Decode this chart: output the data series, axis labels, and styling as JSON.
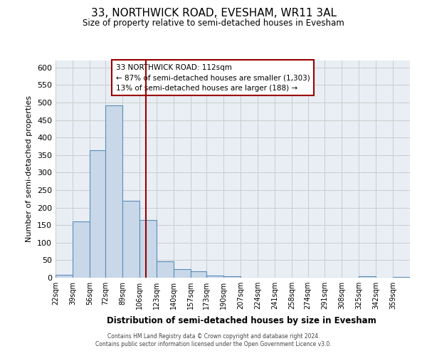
{
  "title": "33, NORTHWICK ROAD, EVESHAM, WR11 3AL",
  "subtitle": "Size of property relative to semi-detached houses in Evesham",
  "xlabel": "Distribution of semi-detached houses by size in Evesham",
  "ylabel": "Number of semi-detached properties",
  "bin_labels": [
    "22sqm",
    "39sqm",
    "56sqm",
    "72sqm",
    "89sqm",
    "106sqm",
    "123sqm",
    "140sqm",
    "157sqm",
    "173sqm",
    "190sqm",
    "207sqm",
    "224sqm",
    "241sqm",
    "258sqm",
    "274sqm",
    "291sqm",
    "308sqm",
    "325sqm",
    "342sqm",
    "359sqm"
  ],
  "bin_edges": [
    22,
    39,
    56,
    72,
    89,
    106,
    123,
    140,
    157,
    173,
    190,
    207,
    224,
    241,
    258,
    274,
    291,
    308,
    325,
    342,
    359,
    376
  ],
  "bar_heights": [
    8,
    160,
    363,
    491,
    220,
    165,
    47,
    24,
    19,
    6,
    5,
    1,
    0,
    0,
    0,
    0,
    0,
    0,
    4,
    0,
    2
  ],
  "bar_facecolor": "#c8d8e8",
  "bar_edgecolor": "#5b8db8",
  "grid_color": "#cccccc",
  "bg_color": "#e8eef4",
  "property_line_x": 112,
  "property_line_color": "#990000",
  "annotation_line1": "33 NORTHWICK ROAD: 112sqm",
  "annotation_line2": "← 87% of semi-detached houses are smaller (1,303)",
  "annotation_line3": "13% of semi-detached houses are larger (188) →",
  "annotation_box_facecolor": "#ffffff",
  "annotation_box_edgecolor": "#990000",
  "ylim": [
    0,
    620
  ],
  "yticks": [
    0,
    50,
    100,
    150,
    200,
    250,
    300,
    350,
    400,
    450,
    500,
    550,
    600
  ],
  "footer_line1": "Contains HM Land Registry data © Crown copyright and database right 2024.",
  "footer_line2": "Contains public sector information licensed under the Open Government Licence v3.0."
}
